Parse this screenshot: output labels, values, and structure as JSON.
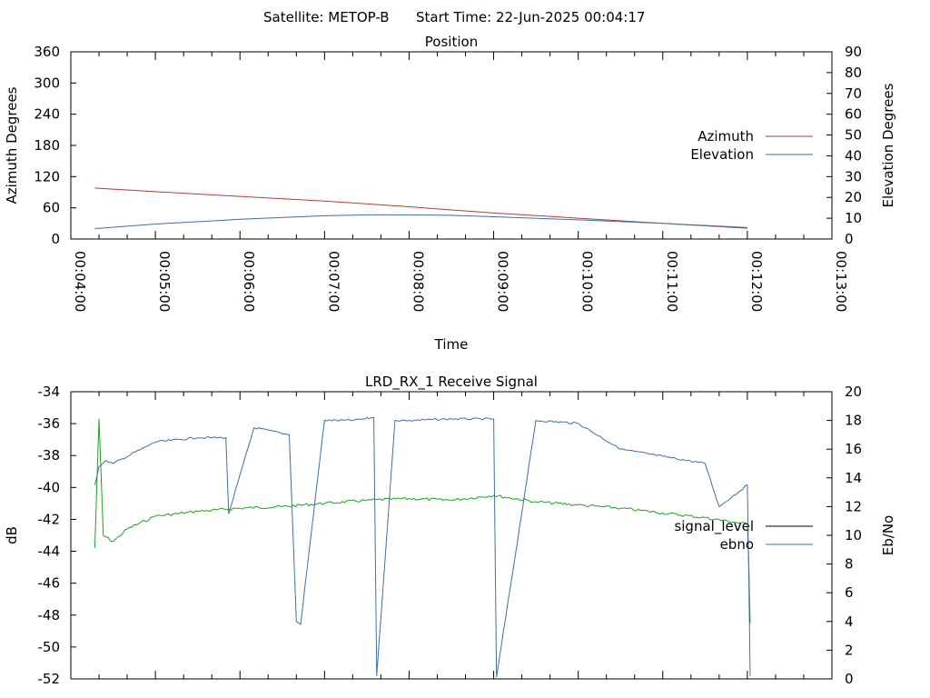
{
  "header": {
    "satellite": "Satellite: METOP-B",
    "start_time": "Start Time: 22-Jun-2025 00:04:17"
  },
  "colors": {
    "azimuth": "#b03a3a",
    "elevation": "#3e6ea8",
    "signal_level": "#000000",
    "ebno": "#3e6ea8",
    "signal_trace": "#1aa31a"
  },
  "chart_data": [
    {
      "type": "line",
      "title": "Position",
      "xlabel": "Time",
      "ylabel": "Azimuth Degrees",
      "y2label": "Elevation Degrees",
      "xlim": [
        "00:04:00",
        "00:13:00"
      ],
      "x_ticks": [
        "00:04:00",
        "00:05:00",
        "00:06:00",
        "00:07:00",
        "00:08:00",
        "00:09:00",
        "00:10:00",
        "00:11:00",
        "00:12:00",
        "00:13:00"
      ],
      "ylim": [
        0,
        360
      ],
      "y_ticks": [
        "0",
        "60",
        "120",
        "180",
        "240",
        "300",
        "360"
      ],
      "y2lim": [
        0,
        90
      ],
      "y2_ticks": [
        "0",
        "10",
        "20",
        "30",
        "40",
        "50",
        "60",
        "70",
        "80",
        "90"
      ],
      "legend_position": "right",
      "series": [
        {
          "name": "Azimuth",
          "axis": "left",
          "x": [
            "00:04:17",
            "00:05:00",
            "00:06:00",
            "00:07:00",
            "00:08:00",
            "00:09:00",
            "00:10:00",
            "00:11:00",
            "00:12:00"
          ],
          "values": [
            98,
            91,
            82,
            73,
            62,
            50,
            40,
            30,
            22
          ]
        },
        {
          "name": "Elevation",
          "axis": "right",
          "x": [
            "00:04:17",
            "00:05:00",
            "00:06:00",
            "00:07:00",
            "00:07:30",
            "00:08:00",
            "00:08:30",
            "00:09:00",
            "00:10:00",
            "00:11:00",
            "00:12:00"
          ],
          "values": [
            5.0,
            7.2,
            9.5,
            11.2,
            11.6,
            11.6,
            11.4,
            10.7,
            9.2,
            7.5,
            5.2
          ]
        }
      ]
    },
    {
      "type": "line",
      "title": "LRD_RX_1 Receive Signal",
      "ylabel": "dB",
      "y2label": "Eb/No",
      "xlim": [
        "00:04:00",
        "00:13:00"
      ],
      "ylim": [
        -52,
        -34
      ],
      "y_ticks": [
        "-52",
        "-50",
        "-48",
        "-46",
        "-44",
        "-42",
        "-40",
        "-38",
        "-36",
        "-34"
      ],
      "y2lim": [
        0,
        20
      ],
      "y2_ticks": [
        "0",
        "2",
        "4",
        "6",
        "8",
        "10",
        "12",
        "14",
        "16",
        "18",
        "20"
      ],
      "legend_position": "right",
      "legend": [
        "signal_level",
        "ebno"
      ],
      "series": [
        {
          "name": "signal_level",
          "axis": "left",
          "x": [
            "00:04:17",
            "00:04:20",
            "00:04:23",
            "00:04:30",
            "00:04:40",
            "00:05:00",
            "00:05:30",
            "00:06:00",
            "00:06:30",
            "00:07:00",
            "00:07:30",
            "00:08:00",
            "00:08:30",
            "00:09:00",
            "00:09:30",
            "00:10:00",
            "00:10:30",
            "00:11:00",
            "00:11:30",
            "00:12:00",
            "00:12:01",
            "00:12:02"
          ],
          "values": [
            -43.8,
            -35.7,
            -43.0,
            -43.4,
            -42.6,
            -41.8,
            -41.5,
            -41.3,
            -41.2,
            -41.0,
            -40.8,
            -40.7,
            -40.8,
            -40.5,
            -40.9,
            -41.1,
            -41.3,
            -41.6,
            -41.9,
            -42.3,
            -44.6,
            -48.5
          ]
        },
        {
          "name": "ebno",
          "axis": "right",
          "x": [
            "00:04:17",
            "00:04:20",
            "00:04:25",
            "00:04:30",
            "00:05:00",
            "00:05:30",
            "00:05:50",
            "00:05:52",
            "00:06:10",
            "00:06:35",
            "00:06:40",
            "00:06:43",
            "00:07:00",
            "00:07:20",
            "00:07:35",
            "00:07:37",
            "00:07:50",
            "00:08:00",
            "00:08:30",
            "00:09:00",
            "00:09:02",
            "00:09:30",
            "00:10:00",
            "00:10:30",
            "00:11:00",
            "00:11:30",
            "00:11:40",
            "00:12:00",
            "00:12:01",
            "00:12:02"
          ],
          "values": [
            13.5,
            14.8,
            15.2,
            15.0,
            16.5,
            16.8,
            16.8,
            11.5,
            17.5,
            17.0,
            4.0,
            3.8,
            18.0,
            18.0,
            18.2,
            0.2,
            18.0,
            18.0,
            18.1,
            18.1,
            0.1,
            18.0,
            17.8,
            16.0,
            15.5,
            15.0,
            12.0,
            13.5,
            7.5,
            0.2
          ]
        }
      ]
    }
  ]
}
